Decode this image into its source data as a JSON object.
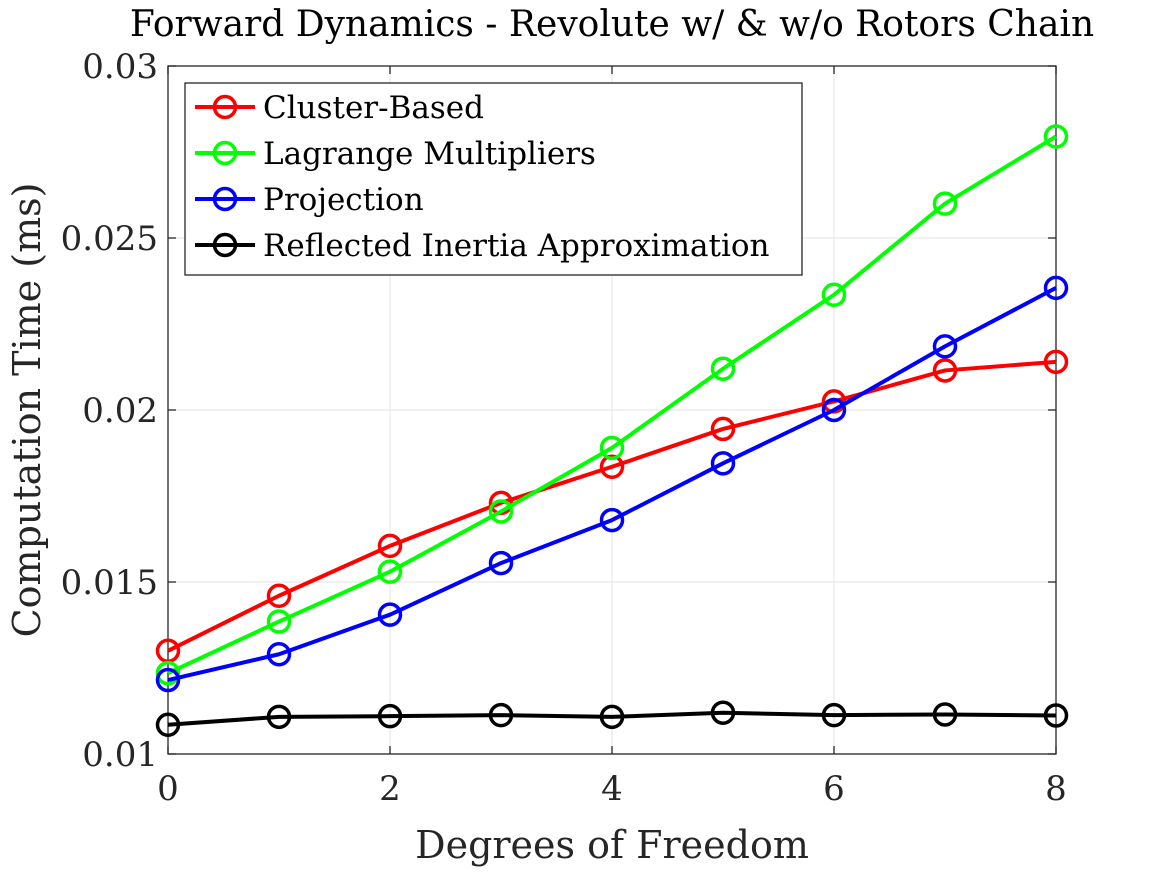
{
  "chart_data": {
    "type": "line",
    "title": "Forward Dynamics - Revolute w/ & w/o Rotors Chain",
    "xlabel": "Degrees of Freedom",
    "ylabel": "Computation Time (ms)",
    "xlim": [
      0,
      8
    ],
    "ylim": [
      0.01,
      0.03
    ],
    "xticks": [
      0,
      2,
      4,
      6,
      8
    ],
    "xtick_labels": [
      "0",
      "2",
      "4",
      "6",
      "8"
    ],
    "yticks": [
      0.01,
      0.015,
      0.02,
      0.025,
      0.03
    ],
    "ytick_labels": [
      "0.01",
      "0.015",
      "0.02",
      "0.025",
      "0.03"
    ],
    "grid": true,
    "legend_position": "top-left",
    "x": [
      0,
      1,
      2,
      3,
      4,
      5,
      6,
      7,
      8
    ],
    "series": [
      {
        "name": "Cluster-Based",
        "color": "#ff0000",
        "marker": "circle",
        "values": [
          0.013,
          0.0146,
          0.01605,
          0.0173,
          0.01835,
          0.01945,
          0.02025,
          0.02115,
          0.0214
        ]
      },
      {
        "name": "Lagrange Multipliers",
        "color": "#00ff00",
        "marker": "circle",
        "values": [
          0.01235,
          0.01385,
          0.0153,
          0.01705,
          0.0189,
          0.0212,
          0.02335,
          0.026,
          0.02795
        ]
      },
      {
        "name": "Projection",
        "color": "#0000ff",
        "marker": "circle",
        "values": [
          0.01215,
          0.0129,
          0.01405,
          0.01555,
          0.0168,
          0.01845,
          0.02,
          0.02185,
          0.02355
        ]
      },
      {
        "name": "Reflected Inertia Approximation",
        "color": "#000000",
        "marker": "circle",
        "values": [
          0.01085,
          0.01108,
          0.0111,
          0.01113,
          0.01108,
          0.0112,
          0.01113,
          0.01115,
          0.01112
        ]
      }
    ]
  }
}
